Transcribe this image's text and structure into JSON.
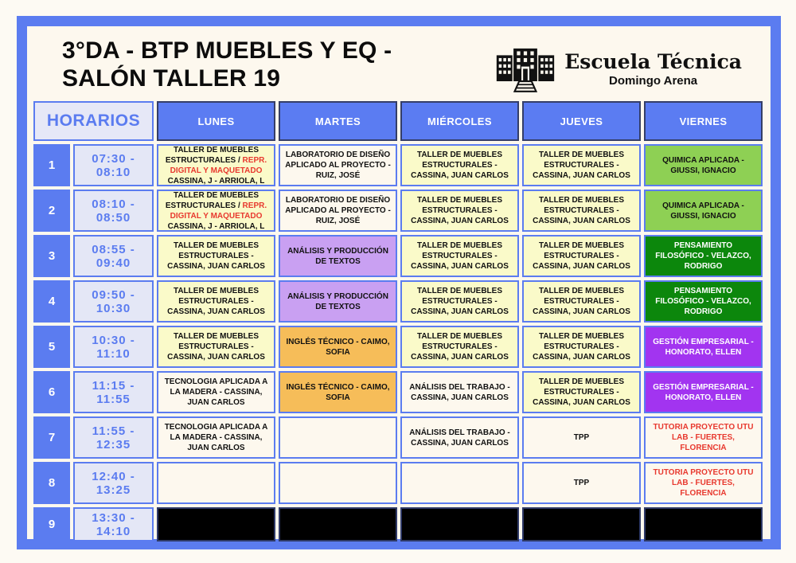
{
  "header": {
    "title_line1": "3°DA - BTP MUEBLES Y EQ -",
    "title_line2": "SALÓN TALLER 19"
  },
  "logo": {
    "name": "Escuela Técnica",
    "subtitle": "Domingo Arena",
    "icon": "school-building-icon"
  },
  "colors": {
    "frame_blue": "#5b7cf0",
    "header_day_blue": "#5b7cf2",
    "header_day_border": "#343e68",
    "lavender": "#e4e7f6",
    "cream": "#fdf8ee",
    "yellow": "#fafac9",
    "green_light": "#8ed054",
    "green_dark": "#0c870c",
    "orange": "#f6bd59",
    "purple_light": "#c9a0f2",
    "purple": "#a234f0",
    "red_text": "#e8392f",
    "black_cell": "#000000"
  },
  "table": {
    "horarios_label": "HORARIOS",
    "days": [
      "LUNES",
      "MARTES",
      "MIÉRCOLES",
      "JUEVES",
      "VIERNES"
    ],
    "rows": [
      {
        "num": "1",
        "time": "07:30 - 08:10",
        "cells": [
          {
            "bg": "yellow",
            "segments": [
              {
                "text": "TALLER DE MUEBLES ESTRUCTURALES / "
              },
              {
                "text": "REPR. DIGITAL Y MAQUETADO",
                "color": "#e8392f"
              },
              {
                "text": " CASSINA, J - ARRIOLA, L"
              }
            ]
          },
          {
            "bg": "white",
            "segments": [
              {
                "text": "LABORATORIO DE DISEÑO APLICADO AL PROYECTO - RUIZ, JOSÉ"
              }
            ]
          },
          {
            "bg": "yellow",
            "segments": [
              {
                "text": "TALLER DE MUEBLES ESTRUCTURALES - CASSINA, JUAN CARLOS"
              }
            ]
          },
          {
            "bg": "yellow",
            "segments": [
              {
                "text": "TALLER DE MUEBLES ESTRUCTURALES - CASSINA, JUAN CARLOS"
              }
            ]
          },
          {
            "bg": "green-light",
            "segments": [
              {
                "text": "QUIMICA APLICADA - GIUSSI, IGNACIO"
              }
            ]
          }
        ]
      },
      {
        "num": "2",
        "time": "08:10 - 08:50",
        "cells": [
          {
            "bg": "yellow",
            "segments": [
              {
                "text": "TALLER DE MUEBLES ESTRUCTURALES / "
              },
              {
                "text": "REPR. DIGITAL Y MAQUETADO",
                "color": "#e8392f"
              },
              {
                "text": " CASSINA, J - ARRIOLA, L"
              }
            ]
          },
          {
            "bg": "white",
            "segments": [
              {
                "text": "LABORATORIO DE DISEÑO APLICADO AL PROYECTO - RUIZ, JOSÉ"
              }
            ]
          },
          {
            "bg": "yellow",
            "segments": [
              {
                "text": "TALLER DE MUEBLES ESTRUCTURALES - CASSINA, JUAN CARLOS"
              }
            ]
          },
          {
            "bg": "yellow",
            "segments": [
              {
                "text": "TALLER DE MUEBLES ESTRUCTURALES - CASSINA, JUAN CARLOS"
              }
            ]
          },
          {
            "bg": "green-light",
            "segments": [
              {
                "text": "QUIMICA APLICADA - GIUSSI, IGNACIO"
              }
            ]
          }
        ]
      },
      {
        "num": "3",
        "time": "08:55 - 09:40",
        "cells": [
          {
            "bg": "yellow",
            "segments": [
              {
                "text": "TALLER DE MUEBLES ESTRUCTURALES - CASSINA, JUAN CARLOS"
              }
            ]
          },
          {
            "bg": "purple-light",
            "segments": [
              {
                "text": "ANÁLISIS Y PRODUCCIÓN DE TEXTOS"
              }
            ]
          },
          {
            "bg": "yellow",
            "segments": [
              {
                "text": "TALLER DE MUEBLES ESTRUCTURALES - CASSINA, JUAN CARLOS"
              }
            ]
          },
          {
            "bg": "yellow",
            "segments": [
              {
                "text": "TALLER DE MUEBLES ESTRUCTURALES - CASSINA, JUAN CARLOS"
              }
            ]
          },
          {
            "bg": "green-dark",
            "segments": [
              {
                "text": "PENSAMIENTO FILOSÓFICO - VELAZCO, RODRIGO"
              }
            ]
          }
        ]
      },
      {
        "num": "4",
        "time": "09:50 - 10:30",
        "cells": [
          {
            "bg": "yellow",
            "segments": [
              {
                "text": "TALLER DE MUEBLES ESTRUCTURALES - CASSINA, JUAN CARLOS"
              }
            ]
          },
          {
            "bg": "purple-light",
            "segments": [
              {
                "text": "ANÁLISIS Y PRODUCCIÓN DE TEXTOS"
              }
            ]
          },
          {
            "bg": "yellow",
            "segments": [
              {
                "text": "TALLER DE MUEBLES ESTRUCTURALES - CASSINA, JUAN CARLOS"
              }
            ]
          },
          {
            "bg": "yellow",
            "segments": [
              {
                "text": "TALLER DE MUEBLES ESTRUCTURALES - CASSINA, JUAN CARLOS"
              }
            ]
          },
          {
            "bg": "green-dark",
            "segments": [
              {
                "text": "PENSAMIENTO FILOSÓFICO - VELAZCO, RODRIGO"
              }
            ]
          }
        ]
      },
      {
        "num": "5",
        "time": "10:30 - 11:10",
        "cells": [
          {
            "bg": "yellow",
            "segments": [
              {
                "text": "TALLER DE MUEBLES ESTRUCTURALES - CASSINA, JUAN CARLOS"
              }
            ]
          },
          {
            "bg": "orange",
            "segments": [
              {
                "text": "INGLÉS TÉCNICO - CAIMO, SOFIA"
              }
            ]
          },
          {
            "bg": "yellow",
            "segments": [
              {
                "text": "TALLER DE MUEBLES ESTRUCTURALES - CASSINA, JUAN CARLOS"
              }
            ]
          },
          {
            "bg": "yellow",
            "segments": [
              {
                "text": "TALLER DE MUEBLES ESTRUCTURALES - CASSINA, JUAN CARLOS"
              }
            ]
          },
          {
            "bg": "purple",
            "segments": [
              {
                "text": "GESTIÓN EMPRESARIAL - HONORATO, ELLEN"
              }
            ]
          }
        ]
      },
      {
        "num": "6",
        "time": "11:15 - 11:55",
        "cells": [
          {
            "bg": "white",
            "segments": [
              {
                "text": "TECNOLOGIA APLICADA A LA MADERA - CASSINA, JUAN CARLOS"
              }
            ]
          },
          {
            "bg": "orange",
            "segments": [
              {
                "text": "INGLÉS TÉCNICO - CAIMO, SOFIA"
              }
            ]
          },
          {
            "bg": "white",
            "segments": [
              {
                "text": "ANÁLISIS DEL TRABAJO - CASSINA, JUAN CARLOS"
              }
            ]
          },
          {
            "bg": "yellow",
            "segments": [
              {
                "text": "TALLER DE MUEBLES ESTRUCTURALES - CASSINA, JUAN CARLOS"
              }
            ]
          },
          {
            "bg": "purple",
            "segments": [
              {
                "text": "GESTIÓN EMPRESARIAL - HONORATO, ELLEN"
              }
            ]
          }
        ]
      },
      {
        "num": "7",
        "time": "11:55 - 12:35",
        "cells": [
          {
            "bg": "white",
            "segments": [
              {
                "text": "TECNOLOGIA APLICADA A LA MADERA - CASSINA, JUAN CARLOS"
              }
            ]
          },
          {
            "bg": "white",
            "segments": []
          },
          {
            "bg": "white",
            "segments": [
              {
                "text": "ANÁLISIS DEL TRABAJO - CASSINA, JUAN CARLOS"
              }
            ]
          },
          {
            "bg": "white",
            "segments": [
              {
                "text": "TPP"
              }
            ]
          },
          {
            "bg": "white",
            "segments": [
              {
                "text": "TUTORIA PROYECTO UTU LAB - FUERTES, FLORENCIA",
                "color": "#e8392f"
              }
            ]
          }
        ]
      },
      {
        "num": "8",
        "time": "12:40 - 13:25",
        "cells": [
          {
            "bg": "white",
            "segments": []
          },
          {
            "bg": "white",
            "segments": []
          },
          {
            "bg": "white",
            "segments": []
          },
          {
            "bg": "white",
            "segments": [
              {
                "text": "TPP"
              }
            ]
          },
          {
            "bg": "white",
            "segments": [
              {
                "text": "TUTORIA PROYECTO UTU LAB - FUERTES, FLORENCIA",
                "color": "#e8392f"
              }
            ]
          }
        ]
      },
      {
        "num": "9",
        "time": "13:30 - 14:10",
        "cells": [
          {
            "bg": "black",
            "segments": []
          },
          {
            "bg": "black",
            "segments": []
          },
          {
            "bg": "black",
            "segments": []
          },
          {
            "bg": "black",
            "segments": []
          },
          {
            "bg": "black",
            "segments": []
          }
        ]
      }
    ]
  }
}
